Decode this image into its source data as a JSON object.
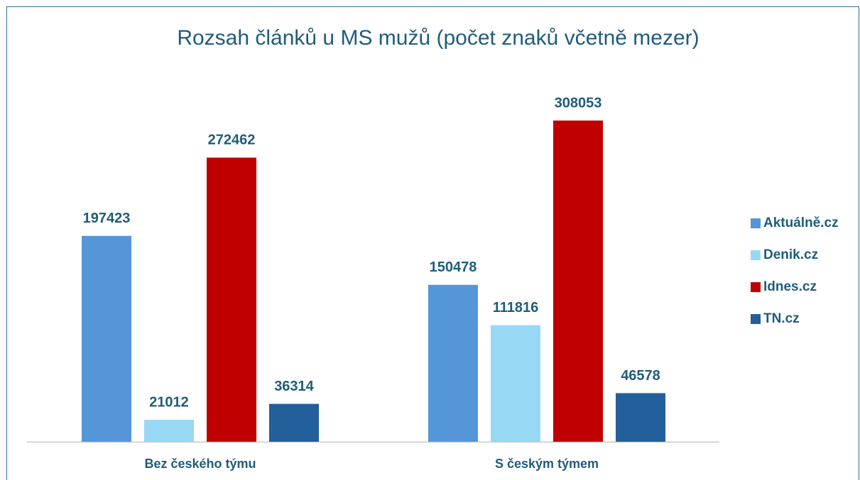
{
  "chart_data": {
    "type": "bar",
    "title": "Rozsah článků u MS mužů (počet znaků včetně mezer)",
    "categories": [
      "Bez českého týmu",
      "S českým týmem"
    ],
    "series": [
      {
        "name": "Aktuálně.cz",
        "color": "#5596d8",
        "values": [
          197423,
          150478
        ]
      },
      {
        "name": "Denik.cz",
        "color": "#97d9f5",
        "values": [
          21012,
          111816
        ]
      },
      {
        "name": "Idnes.cz",
        "color": "#c00000",
        "values": [
          272462,
          308053
        ]
      },
      {
        "name": "TN.cz",
        "color": "#235f9b",
        "values": [
          36314,
          46578
        ]
      }
    ],
    "legend": "right"
  }
}
